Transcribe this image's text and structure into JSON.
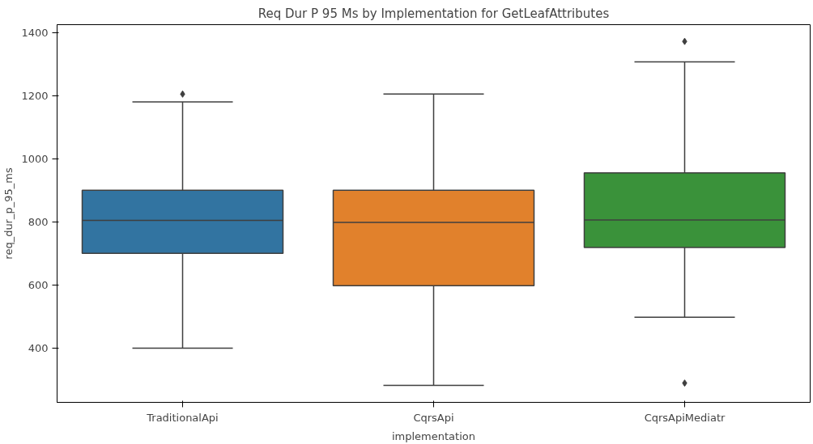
{
  "chart_data": {
    "type": "box",
    "title": "Req Dur P 95 Ms by Implementation for GetLeafAttributes",
    "xlabel": "implementation",
    "ylabel": "req_dur_p_95_ms",
    "categories": [
      "TraditionalApi",
      "CqrsApi",
      "CqrsApiMediatr"
    ],
    "colors": [
      "#3274a1",
      "#e1812c",
      "#3a923a"
    ],
    "boxes": [
      {
        "low": 400,
        "q1": 700,
        "median": 805,
        "q3": 900,
        "high": 1180,
        "outliers": [
          1205
        ]
      },
      {
        "low": 282,
        "q1": 598,
        "median": 798,
        "q3": 900,
        "high": 1205
      },
      {
        "low": 498,
        "q1": 719,
        "median": 806,
        "q3": 955,
        "high": 1307,
        "outliers": [
          1372,
          289
        ]
      }
    ],
    "marker": "diamond",
    "ylim": [
      228,
      1425
    ],
    "yticks": [
      400,
      600,
      800,
      1000,
      1200,
      1400
    ]
  }
}
